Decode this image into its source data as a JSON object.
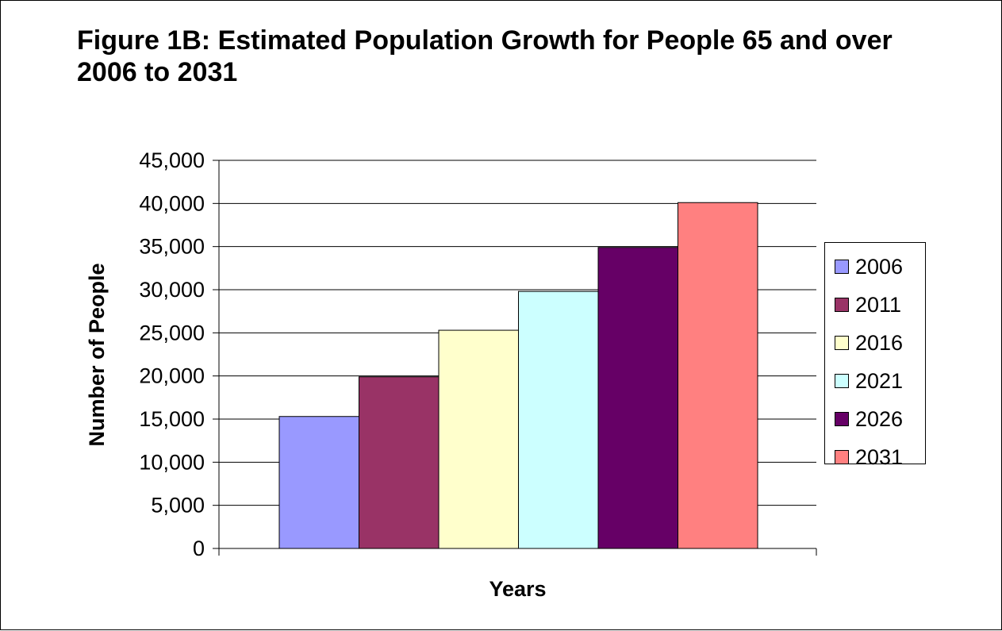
{
  "chart_data": {
    "type": "bar",
    "title": "Figure 1B: Estimated Population Growth for People 65 and over 2006 to 2031",
    "xlabel": "Years",
    "ylabel": "Number of People",
    "ylim": [
      0,
      45000
    ],
    "yticks": [
      "0",
      "5,000",
      "10,000",
      "15,000",
      "20,000",
      "25,000",
      "30,000",
      "35,000",
      "40,000",
      "45,000"
    ],
    "grid": true,
    "legend_position": "right",
    "series": [
      {
        "name": "2006",
        "value": 15300,
        "color": "#9999FF"
      },
      {
        "name": "2011",
        "value": 19900,
        "color": "#993366"
      },
      {
        "name": "2016",
        "value": 25300,
        "color": "#FFFFCC"
      },
      {
        "name": "2021",
        "value": 29800,
        "color": "#CCFFFF"
      },
      {
        "name": "2026",
        "value": 34900,
        "color": "#660066"
      },
      {
        "name": "2031",
        "value": 40100,
        "color": "#FF8080"
      }
    ]
  }
}
